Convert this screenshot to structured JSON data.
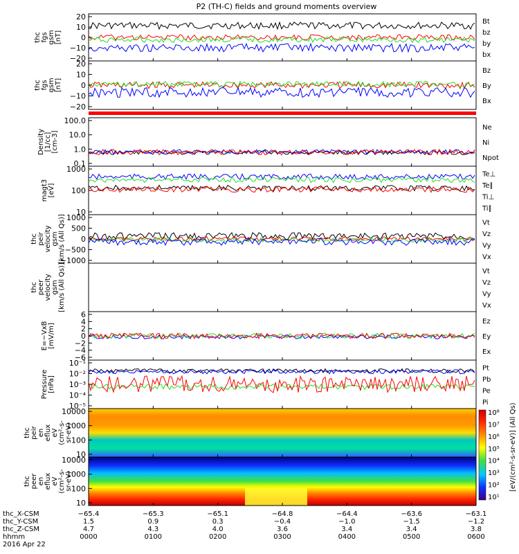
{
  "title": "P2 (TH-C) fields and ground moments overview",
  "colors": {
    "black": "#000000",
    "red": "#ff0000",
    "green": "#22dd22",
    "blue": "#0000ff"
  },
  "chart_data": {
    "type": "line",
    "panels": [
      {
        "id": "fgs-gsm-top",
        "ylabel": [
          "thc",
          "fgs",
          "gsm",
          "[nT]"
        ],
        "ticks": [
          "20",
          "10",
          "0",
          "−10",
          "−20"
        ],
        "legend": [
          {
            "text": "Bt",
            "color": "black"
          },
          {
            "text": "bz",
            "color": "red"
          },
          {
            "text": "by",
            "color": "green"
          },
          {
            "text": "bx",
            "color": "blue"
          }
        ]
      },
      {
        "id": "fgs-gsm-bottom",
        "ylabel": [
          "thc",
          "fgs",
          "gsm",
          "[nT]"
        ],
        "ticks": [
          "20",
          "10",
          "0",
          "−10",
          "−20"
        ],
        "legend": [
          {
            "text": "Bz",
            "color": "red"
          },
          {
            "text": "By",
            "color": "green"
          },
          {
            "text": "Bx",
            "color": "blue"
          }
        ]
      },
      {
        "id": "density",
        "ylabel": [
          "Density",
          "[1/cc]",
          "[cm-3]"
        ],
        "ticks": [
          "100.0",
          "10.0",
          "1.0",
          "0.1"
        ],
        "legend": [
          {
            "text": "Ne",
            "color": "red"
          },
          {
            "text": "Ni",
            "color": "black"
          },
          {
            "text": "Npot",
            "color": "blue"
          }
        ]
      },
      {
        "id": "temperature",
        "ylabel": [
          "magt3",
          "[eV]"
        ],
        "ticks": [
          "1000",
          "100",
          "10"
        ],
        "legend": [
          {
            "text": "Te⊥",
            "color": "red"
          },
          {
            "text": "Te∥",
            "color": "black"
          },
          {
            "text": "Ti⊥",
            "color": "blue"
          },
          {
            "text": "Ti∥",
            "color": "green"
          }
        ]
      },
      {
        "id": "peir-velocity",
        "ylabel": [
          "thc",
          "peir",
          "velocity",
          "gsm",
          "[km/s (All Qs)]"
        ],
        "ticks": [
          "1000",
          "500",
          "0",
          "−500",
          "−1000"
        ],
        "legend": [
          {
            "text": "Vt",
            "color": "black"
          },
          {
            "text": "Vz",
            "color": "red"
          },
          {
            "text": "Vy",
            "color": "green"
          },
          {
            "text": "Vx",
            "color": "blue"
          }
        ]
      },
      {
        "id": "peer-velocity",
        "ylabel": [
          "thc",
          "peer",
          "velocity",
          "gsm",
          "[km/s (All Qs)]"
        ],
        "ticks": [],
        "legend": [
          {
            "text": "Vt",
            "color": "black"
          },
          {
            "text": "Vz",
            "color": "red"
          },
          {
            "text": "Vy",
            "color": "green"
          },
          {
            "text": "Vx",
            "color": "blue"
          }
        ]
      },
      {
        "id": "efield",
        "ylabel": [
          "E=−VxB",
          "[mV/m]"
        ],
        "ticks": [
          "6",
          "4",
          "2",
          "0",
          "−2",
          "−4",
          "−6"
        ],
        "legend": [
          {
            "text": "Ez",
            "color": "red"
          },
          {
            "text": "Ey",
            "color": "green"
          },
          {
            "text": "Ex",
            "color": "blue"
          }
        ]
      },
      {
        "id": "pressure",
        "ylabel": [
          "Pressure",
          "[nPa]"
        ],
        "ticks": [
          "10⁻¹",
          "10⁻²",
          "10⁻³",
          "10⁻⁴",
          "10⁻⁵"
        ],
        "legend": [
          {
            "text": "Pt",
            "color": "black"
          },
          {
            "text": "Pb",
            "color": "red"
          },
          {
            "text": "Pe",
            "color": "green"
          },
          {
            "text": "Pi",
            "color": "blue"
          }
        ]
      },
      {
        "id": "peir-spec",
        "ylabel": [
          "thc",
          "peir",
          "en",
          "eflux",
          "eV",
          "(cm²-s-",
          "sr-eV)"
        ],
        "ticks": [
          "10000",
          "1000",
          "100",
          "10"
        ]
      },
      {
        "id": "peer-spec",
        "ylabel": [
          "thc",
          "peer",
          "en",
          "eflux",
          "eV",
          "(cm²-s-",
          "sr-eV)"
        ],
        "ticks": [
          "10000",
          "1000",
          "100",
          "10"
        ]
      }
    ],
    "colorbar": {
      "label": "[eV/(cm²-s-sr-eV)] (All Qs)",
      "ticks": [
        "10⁸",
        "10⁷",
        "10⁶",
        "10⁵",
        "10⁴",
        "10³",
        "10²",
        "10¹"
      ]
    },
    "x_axis": {
      "rows": [
        {
          "label": "thc_X-CSM",
          "values": [
            "−65.4",
            "−65.3",
            "−65.1",
            "−64.8",
            "−64.4",
            "−63.6",
            "−63.1"
          ]
        },
        {
          "label": "thc_Y-CSM",
          "values": [
            "1.5",
            "0.9",
            "0.3",
            "−0.4",
            "−1.0",
            "−1.5",
            "−1.2"
          ]
        },
        {
          "label": "thc_Z-CSM",
          "values": [
            "4.7",
            "4.3",
            "4.0",
            "3.6",
            "3.4",
            "3.4",
            "3.8"
          ]
        },
        {
          "label": "hhmm",
          "values": [
            "0000",
            "0100",
            "0200",
            "0300",
            "0400",
            "0500",
            "0600"
          ]
        }
      ],
      "date": "2016 Apr 22"
    }
  }
}
